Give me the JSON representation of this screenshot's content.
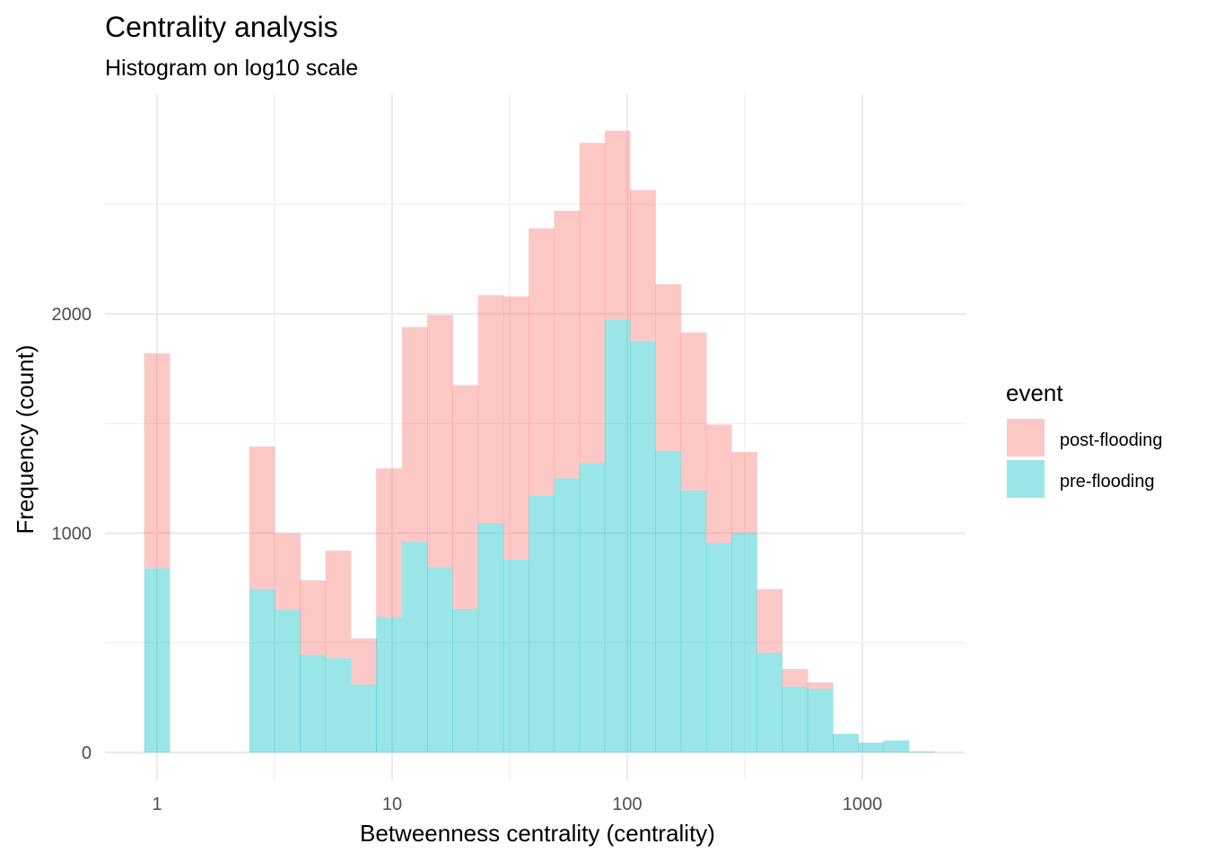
{
  "chart_data": {
    "type": "bar",
    "title": "Centrality analysis",
    "subtitle": "Histogram on log10 scale",
    "xlabel": "Betweenness centrality (centrality)",
    "ylabel": "Frequency (count)",
    "x_scale": "log10",
    "xlim": [
      0.8,
      2000
    ],
    "ylim": [
      0,
      2900
    ],
    "x_ticks": [
      1,
      10,
      100,
      1000
    ],
    "x_tick_labels": [
      "1",
      "10",
      "100",
      "1000"
    ],
    "x_minor_ticks": [
      3.16,
      31.6,
      316
    ],
    "y_ticks": [
      0,
      1000,
      2000
    ],
    "y_tick_labels": [
      "0",
      "1000",
      "2000"
    ],
    "y_minor_ticks": [
      500,
      1500,
      2500
    ],
    "grid": true,
    "stacked": true,
    "bin_log_width": 0.11,
    "bin_centers": [
      1,
      2.2,
      2.8,
      3.6,
      4.6,
      5.9,
      7.6,
      9.7,
      12.5,
      16,
      20.5,
      26.3,
      33.7,
      43.2,
      55.4,
      71,
      91,
      116.6,
      149.5,
      191.6,
      245.6,
      314.8,
      403.5,
      517.3,
      663,
      850,
      1089.5,
      1396.6,
      1790.2
    ],
    "legend": {
      "title": "event",
      "position": "right",
      "entries": [
        "post-flooding",
        "pre-flooding"
      ]
    },
    "series": [
      {
        "name": "post-flooding",
        "color": "#F8766D",
        "values": [
          980,
          0,
          650,
          350,
          340,
          490,
          210,
          680,
          980,
          1150,
          1020,
          1040,
          1200,
          1220,
          1220,
          1460,
          860,
          690,
          760,
          720,
          540,
          370,
          290,
          80,
          30,
          0,
          0,
          0,
          0
        ]
      },
      {
        "name": "pre-flooding",
        "color": "#00BFC4",
        "values": [
          840,
          0,
          745,
          650,
          445,
          430,
          310,
          615,
          960,
          845,
          655,
          1045,
          880,
          1170,
          1250,
          1320,
          1975,
          1875,
          1375,
          1195,
          955,
          1000,
          455,
          300,
          290,
          85,
          45,
          55,
          5
        ]
      }
    ]
  }
}
